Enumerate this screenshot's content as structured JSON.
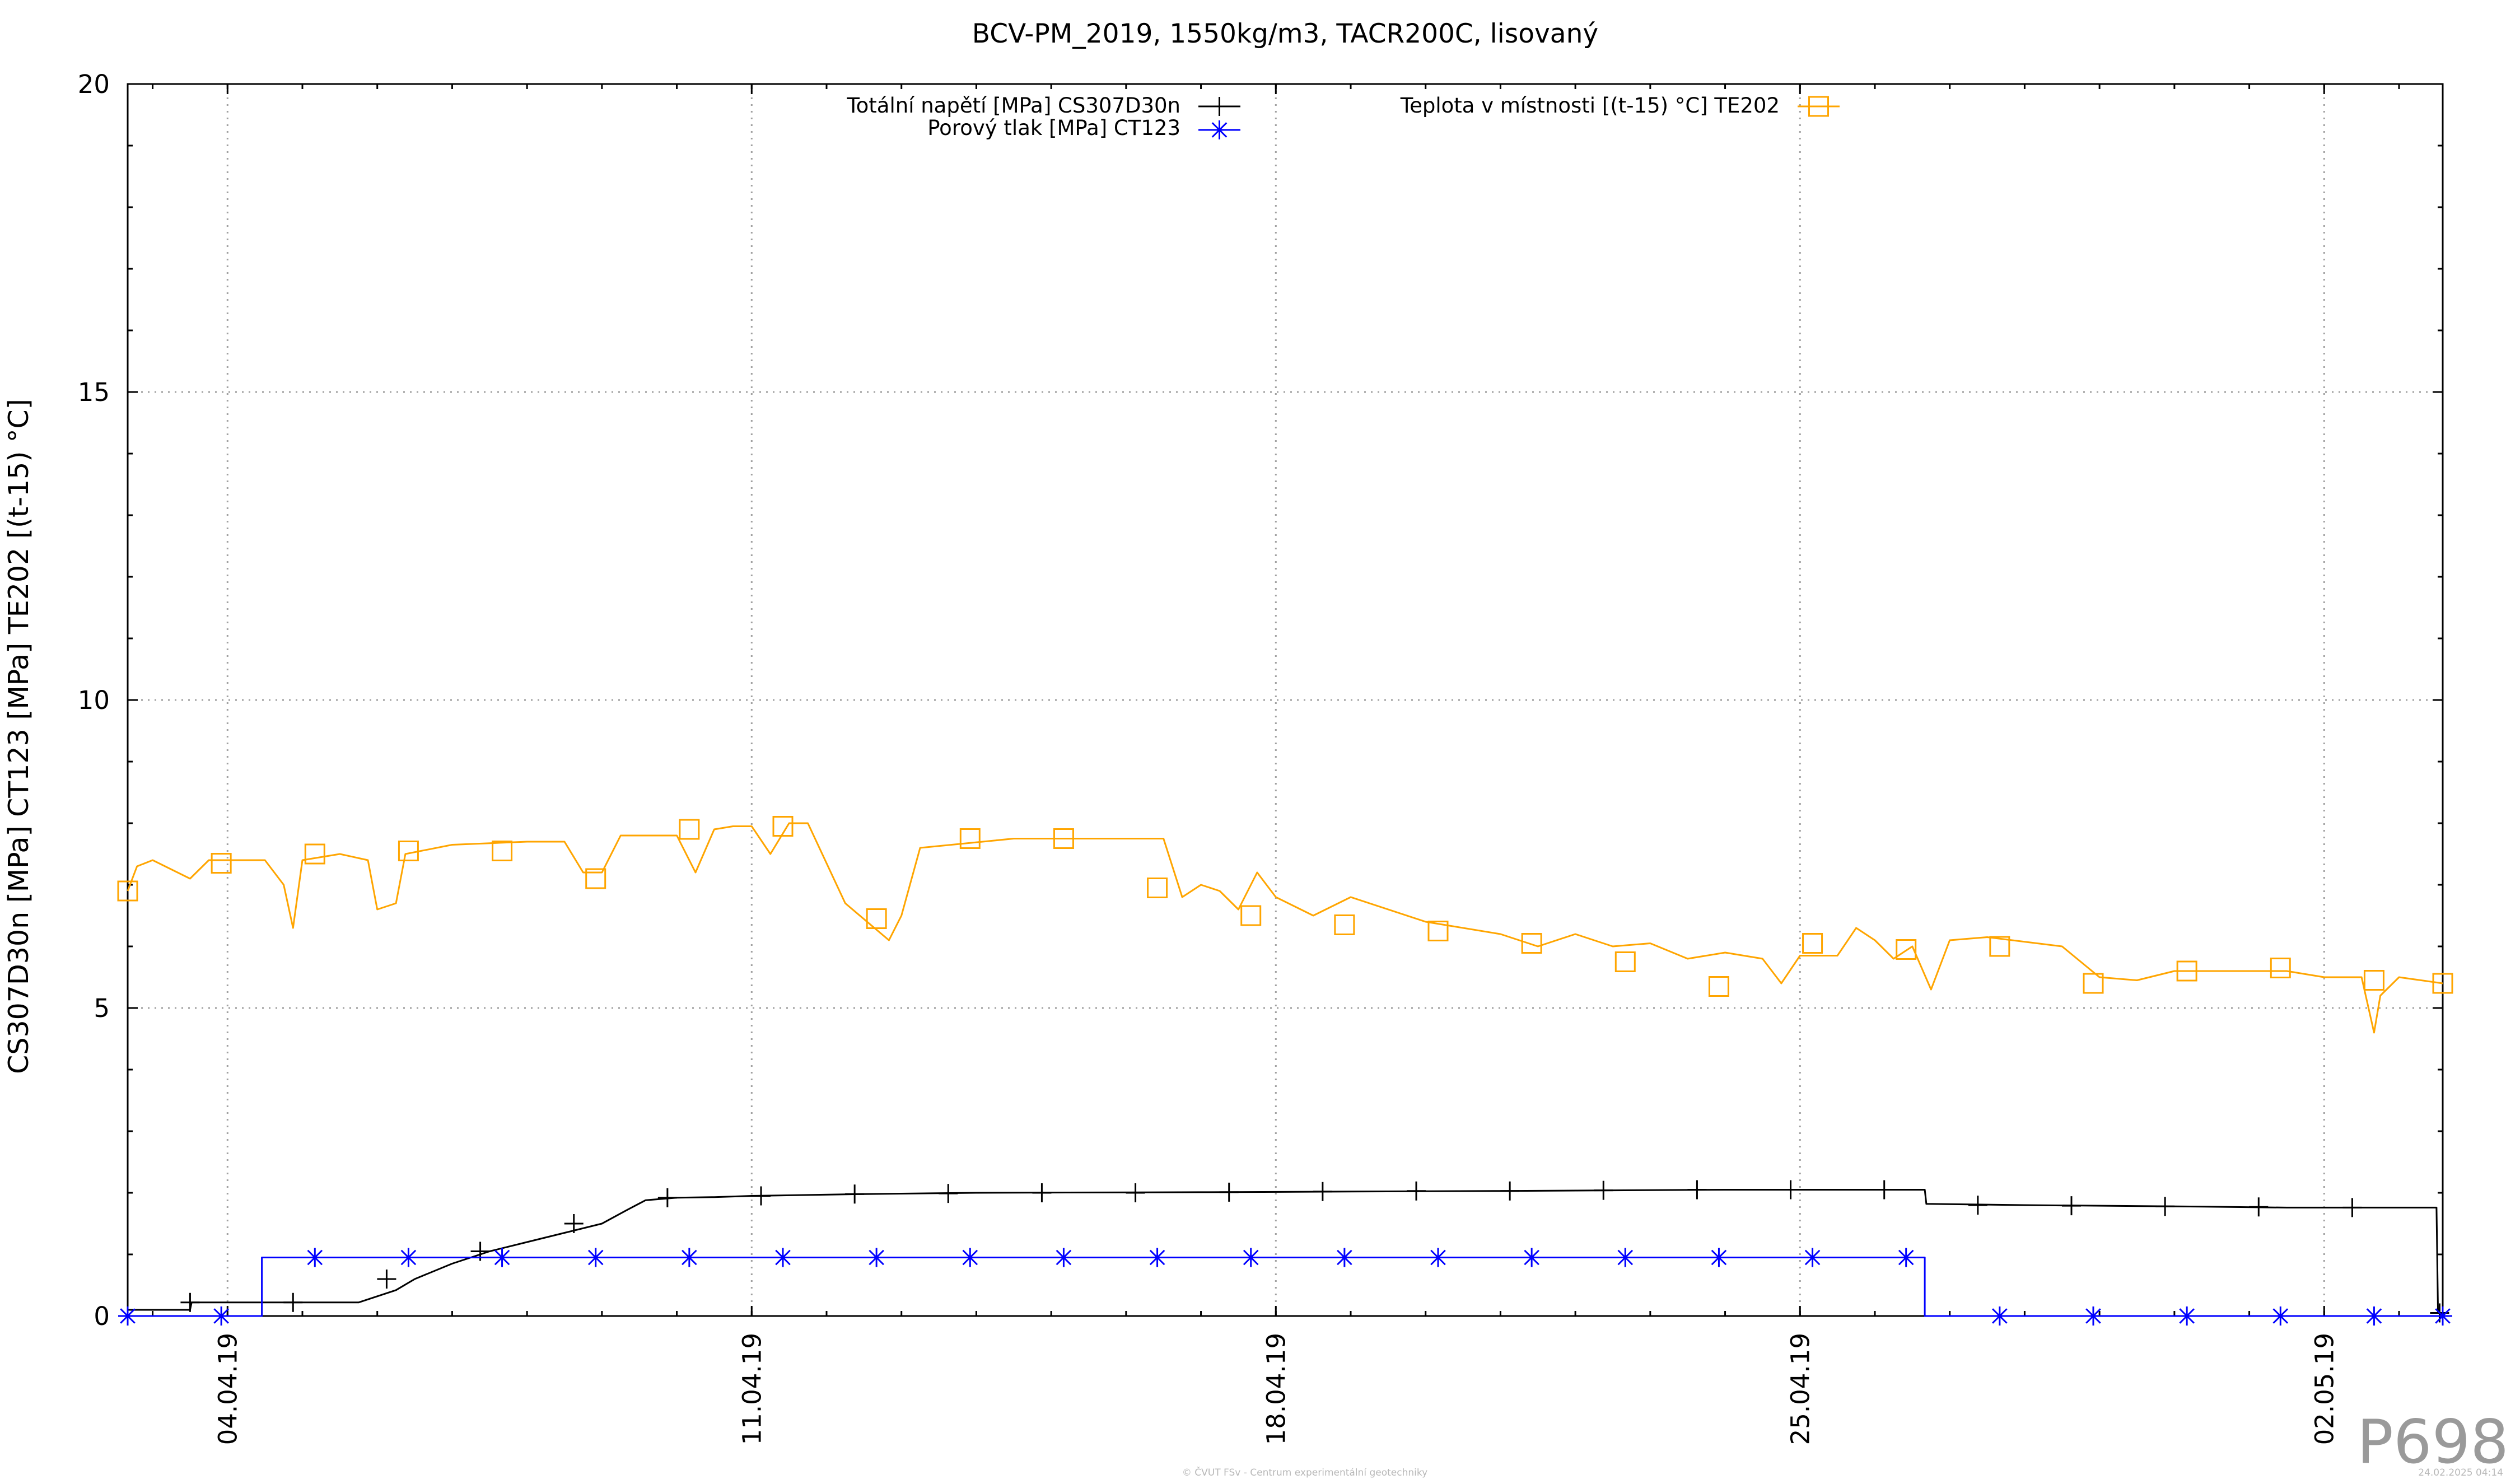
{
  "chart_data": {
    "type": "line",
    "title": "BCV-PM_2019, 1550kg/m3, TACR200C, lisovaný",
    "xlabel": "",
    "ylabel": "CS307D30n [MPa] CT123 [MPa] TE202 [(t-15) °C]",
    "x_axis": "date",
    "xlim": [
      "2019-04-02T16:00",
      "2019-05-03T14:00"
    ],
    "ylim": [
      0,
      20
    ],
    "yticks": [
      "0",
      "5",
      "10",
      "15",
      "20"
    ],
    "xticks": [
      {
        "date": "2019-04-04",
        "label": "04.04.19"
      },
      {
        "date": "2019-04-11",
        "label": "11.04.19"
      },
      {
        "date": "2019-04-18",
        "label": "18.04.19"
      },
      {
        "date": "2019-04-25",
        "label": "25.04.19"
      },
      {
        "date": "2019-05-02",
        "label": "02.05.19"
      }
    ],
    "grid": true,
    "legend": "top-center",
    "series": [
      {
        "name": "Totální napětí [MPa] CS307D30n",
        "color": "#000000",
        "marker": "plus",
        "points": [
          [
            "2019-04-02T16:00",
            0.1
          ],
          [
            "2019-04-03T12:00",
            0.1
          ],
          [
            "2019-04-03T12:30",
            0.22
          ],
          [
            "2019-04-04T00:00",
            0.22
          ],
          [
            "2019-04-04T07:00",
            0.22
          ],
          [
            "2019-04-04T07:30",
            0.22
          ],
          [
            "2019-04-05T06:00",
            0.22
          ],
          [
            "2019-04-05T18:00",
            0.22
          ],
          [
            "2019-04-06T06:00",
            0.42
          ],
          [
            "2019-04-06T12:00",
            0.6
          ],
          [
            "2019-04-07T00:00",
            0.85
          ],
          [
            "2019-04-07T12:00",
            1.05
          ],
          [
            "2019-04-08T00:00",
            1.2
          ],
          [
            "2019-04-08T12:00",
            1.35
          ],
          [
            "2019-04-09T00:00",
            1.5
          ],
          [
            "2019-04-09T08:00",
            1.72
          ],
          [
            "2019-04-09T14:00",
            1.88
          ],
          [
            "2019-04-10T00:00",
            1.92
          ],
          [
            "2019-04-10T12:00",
            1.93
          ],
          [
            "2019-04-11T00:00",
            1.95
          ],
          [
            "2019-04-12T12:00",
            1.98
          ],
          [
            "2019-04-14T00:00",
            2.0
          ],
          [
            "2019-04-17T00:00",
            2.01
          ],
          [
            "2019-04-21T00:00",
            2.03
          ],
          [
            "2019-04-24T00:00",
            2.05
          ],
          [
            "2019-04-26T16:00",
            2.05
          ],
          [
            "2019-04-26T16:30",
            1.82
          ],
          [
            "2019-04-28T00:00",
            1.8
          ],
          [
            "2019-04-30T00:00",
            1.78
          ],
          [
            "2019-05-01T12:00",
            1.76
          ],
          [
            "2019-05-03T12:00",
            1.76
          ],
          [
            "2019-05-03T12:30",
            0.05
          ],
          [
            "2019-05-03T14:00",
            0.05
          ]
        ],
        "marker_points": [
          [
            "2019-04-03T12:00",
            0.22
          ],
          [
            "2019-04-04T21:00",
            0.22
          ],
          [
            "2019-04-06T03:00",
            0.6
          ],
          [
            "2019-04-07T09:00",
            1.05
          ],
          [
            "2019-04-08T15:00",
            1.5
          ],
          [
            "2019-04-09T21:00",
            1.92
          ],
          [
            "2019-04-11T03:00",
            1.95
          ],
          [
            "2019-04-12T09:00",
            1.98
          ],
          [
            "2019-04-13T15:00",
            1.99
          ],
          [
            "2019-04-14T21:00",
            2.0
          ],
          [
            "2019-04-16T03:00",
            2.0
          ],
          [
            "2019-04-17T09:00",
            2.01
          ],
          [
            "2019-04-18T15:00",
            2.02
          ],
          [
            "2019-04-19T21:00",
            2.03
          ],
          [
            "2019-04-21T03:00",
            2.03
          ],
          [
            "2019-04-22T09:00",
            2.04
          ],
          [
            "2019-04-23T15:00",
            2.05
          ],
          [
            "2019-04-24T21:00",
            2.05
          ],
          [
            "2019-04-26T03:00",
            2.05
          ],
          [
            "2019-04-27T09:00",
            1.8
          ],
          [
            "2019-04-28T15:00",
            1.79
          ],
          [
            "2019-04-29T21:00",
            1.78
          ],
          [
            "2019-05-01T03:00",
            1.77
          ],
          [
            "2019-05-02T09:00",
            1.76
          ],
          [
            "2019-05-03T13:00",
            0.05
          ]
        ]
      },
      {
        "name": "Porový tlak [MPa] CT123",
        "color": "#0000ff",
        "marker": "star",
        "points": [
          [
            "2019-04-02T16:00",
            0.0
          ],
          [
            "2019-04-04T11:00",
            0.0
          ],
          [
            "2019-04-04T11:00",
            0.95
          ],
          [
            "2019-04-26T16:00",
            0.95
          ],
          [
            "2019-04-26T16:00",
            0.0
          ],
          [
            "2019-05-03T14:00",
            0.0
          ]
        ],
        "marker_points": [
          [
            "2019-04-02T16:00",
            0.0
          ],
          [
            "2019-04-03T22:00",
            0.0
          ],
          [
            "2019-04-05T04:00",
            0.95
          ],
          [
            "2019-04-06T10:00",
            0.95
          ],
          [
            "2019-04-07T16:00",
            0.95
          ],
          [
            "2019-04-08T22:00",
            0.95
          ],
          [
            "2019-04-10T04:00",
            0.95
          ],
          [
            "2019-04-11T10:00",
            0.95
          ],
          [
            "2019-04-12T16:00",
            0.95
          ],
          [
            "2019-04-13T22:00",
            0.95
          ],
          [
            "2019-04-15T04:00",
            0.95
          ],
          [
            "2019-04-16T10:00",
            0.95
          ],
          [
            "2019-04-17T16:00",
            0.95
          ],
          [
            "2019-04-18T22:00",
            0.95
          ],
          [
            "2019-04-20T04:00",
            0.95
          ],
          [
            "2019-04-21T10:00",
            0.95
          ],
          [
            "2019-04-22T16:00",
            0.95
          ],
          [
            "2019-04-23T22:00",
            0.95
          ],
          [
            "2019-04-25T04:00",
            0.95
          ],
          [
            "2019-04-26T10:00",
            0.95
          ],
          [
            "2019-04-27T16:00",
            0.0
          ],
          [
            "2019-04-28T22:00",
            0.0
          ],
          [
            "2019-04-30T04:00",
            0.0
          ],
          [
            "2019-05-01T10:00",
            0.0
          ],
          [
            "2019-05-02T16:00",
            0.0
          ],
          [
            "2019-05-03T14:00",
            0.0
          ]
        ]
      },
      {
        "name": "Teplota v místnosti [(t-15) °C] TE202",
        "color": "#ffa500",
        "marker": "square",
        "points": [
          [
            "2019-04-02T16:00",
            6.9
          ],
          [
            "2019-04-02T19:00",
            7.3
          ],
          [
            "2019-04-03T00:00",
            7.4
          ],
          [
            "2019-04-03T12:00",
            7.1
          ],
          [
            "2019-04-03T18:00",
            7.4
          ],
          [
            "2019-04-04T12:00",
            7.4
          ],
          [
            "2019-04-04T18:00",
            7.0
          ],
          [
            "2019-04-04T21:00",
            6.3
          ],
          [
            "2019-04-05T00:00",
            7.4
          ],
          [
            "2019-04-05T12:00",
            7.5
          ],
          [
            "2019-04-05T21:00",
            7.4
          ],
          [
            "2019-04-06T00:00",
            6.6
          ],
          [
            "2019-04-06T06:00",
            6.7
          ],
          [
            "2019-04-06T09:00",
            7.5
          ],
          [
            "2019-04-07T00:00",
            7.65
          ],
          [
            "2019-04-08T00:00",
            7.7
          ],
          [
            "2019-04-08T12:00",
            7.7
          ],
          [
            "2019-04-08T18:00",
            7.2
          ],
          [
            "2019-04-09T00:00",
            7.2
          ],
          [
            "2019-04-09T06:00",
            7.8
          ],
          [
            "2019-04-10T00:00",
            7.8
          ],
          [
            "2019-04-10T06:00",
            7.2
          ],
          [
            "2019-04-10T12:00",
            7.9
          ],
          [
            "2019-04-10T18:00",
            7.95
          ],
          [
            "2019-04-11T00:00",
            7.95
          ],
          [
            "2019-04-11T06:00",
            7.5
          ],
          [
            "2019-04-11T12:00",
            8.0
          ],
          [
            "2019-04-11T18:00",
            8.0
          ],
          [
            "2019-04-12T06:00",
            6.7
          ],
          [
            "2019-04-12T20:00",
            6.1
          ],
          [
            "2019-04-13T00:00",
            6.5
          ],
          [
            "2019-04-13T06:00",
            7.6
          ],
          [
            "2019-04-14T12:00",
            7.75
          ],
          [
            "2019-04-15T12:00",
            7.75
          ],
          [
            "2019-04-16T12:00",
            7.75
          ],
          [
            "2019-04-16T18:00",
            6.8
          ],
          [
            "2019-04-17T00:00",
            7.0
          ],
          [
            "2019-04-17T06:00",
            6.9
          ],
          [
            "2019-04-17T12:00",
            6.6
          ],
          [
            "2019-04-17T18:00",
            7.2
          ],
          [
            "2019-04-18T00:00",
            6.8
          ],
          [
            "2019-04-18T12:00",
            6.5
          ],
          [
            "2019-04-19T00:00",
            6.8
          ],
          [
            "2019-04-20T00:00",
            6.4
          ],
          [
            "2019-04-21T00:00",
            6.2
          ],
          [
            "2019-04-21T12:00",
            6.0
          ],
          [
            "2019-04-22T00:00",
            6.2
          ],
          [
            "2019-04-22T12:00",
            6.0
          ],
          [
            "2019-04-23T00:00",
            6.05
          ],
          [
            "2019-04-23T12:00",
            5.8
          ],
          [
            "2019-04-24T00:00",
            5.9
          ],
          [
            "2019-04-24T12:00",
            5.8
          ],
          [
            "2019-04-24T18:00",
            5.4
          ],
          [
            "2019-04-25T00:00",
            5.85
          ],
          [
            "2019-04-25T12:00",
            5.85
          ],
          [
            "2019-04-25T18:00",
            6.3
          ],
          [
            "2019-04-26T00:00",
            6.1
          ],
          [
            "2019-04-26T06:00",
            5.8
          ],
          [
            "2019-04-26T12:00",
            6.0
          ],
          [
            "2019-04-26T18:00",
            5.3
          ],
          [
            "2019-04-27T00:00",
            6.1
          ],
          [
            "2019-04-27T12:00",
            6.15
          ],
          [
            "2019-04-28T12:00",
            6.0
          ],
          [
            "2019-04-29T00:00",
            5.5
          ],
          [
            "2019-04-29T12:00",
            5.45
          ],
          [
            "2019-04-30T00:00",
            5.6
          ],
          [
            "2019-04-30T12:00",
            5.6
          ],
          [
            "2019-05-01T00:00",
            5.6
          ],
          [
            "2019-05-01T12:00",
            5.6
          ],
          [
            "2019-05-02T00:00",
            5.5
          ],
          [
            "2019-05-02T12:00",
            5.5
          ],
          [
            "2019-05-02T16:00",
            4.6
          ],
          [
            "2019-05-02T18:00",
            5.2
          ],
          [
            "2019-05-03T00:00",
            5.5
          ],
          [
            "2019-05-03T14:00",
            5.4
          ]
        ],
        "marker_points": [
          [
            "2019-04-02T16:00",
            6.9
          ],
          [
            "2019-04-03T22:00",
            7.35
          ],
          [
            "2019-04-05T04:00",
            7.5
          ],
          [
            "2019-04-06T10:00",
            7.55
          ],
          [
            "2019-04-07T16:00",
            7.55
          ],
          [
            "2019-04-08T22:00",
            7.1
          ],
          [
            "2019-04-10T04:00",
            7.9
          ],
          [
            "2019-04-11T10:00",
            7.95
          ],
          [
            "2019-04-12T16:00",
            6.45
          ],
          [
            "2019-04-13T22:00",
            7.75
          ],
          [
            "2019-04-15T04:00",
            7.75
          ],
          [
            "2019-04-16T10:00",
            6.95
          ],
          [
            "2019-04-17T16:00",
            6.5
          ],
          [
            "2019-04-18T22:00",
            6.35
          ],
          [
            "2019-04-20T04:00",
            6.25
          ],
          [
            "2019-04-21T10:00",
            6.05
          ],
          [
            "2019-04-22T16:00",
            5.75
          ],
          [
            "2019-04-23T22:00",
            5.35
          ],
          [
            "2019-04-25T04:00",
            6.05
          ],
          [
            "2019-04-26T10:00",
            5.95
          ],
          [
            "2019-04-27T16:00",
            6.0
          ],
          [
            "2019-04-28T22:00",
            5.4
          ],
          [
            "2019-04-30T04:00",
            5.6
          ],
          [
            "2019-05-01T10:00",
            5.65
          ],
          [
            "2019-05-02T16:00",
            5.45
          ],
          [
            "2019-05-03T14:00",
            5.4
          ]
        ]
      }
    ]
  },
  "watermark": "P698",
  "footer_left": "© ČVUT FSv - Centrum experimentální geotechniky",
  "footer_right": "24.02.2025 04:14"
}
